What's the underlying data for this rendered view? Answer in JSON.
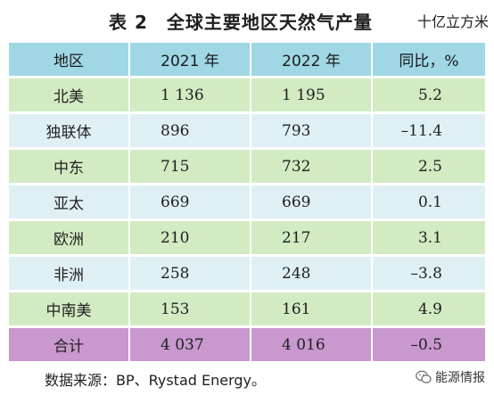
{
  "title": "表 2　全球主要地区天然气产量",
  "unit": "十亿立方米",
  "table": {
    "headers": [
      "地区",
      "2021 年",
      "2022 年",
      "同比，%"
    ],
    "rows": [
      {
        "region": "北美",
        "y2021": "1 136",
        "y2022": "1 195",
        "yoy": "5.2"
      },
      {
        "region": "独联体",
        "y2021": "896",
        "y2022": "793",
        "yoy": "–11.4"
      },
      {
        "region": "中东",
        "y2021": "715",
        "y2022": "732",
        "yoy": "2.5"
      },
      {
        "region": "亚太",
        "y2021": "669",
        "y2022": "669",
        "yoy": "0.1"
      },
      {
        "region": "欧洲",
        "y2021": "210",
        "y2022": "217",
        "yoy": "3.1"
      },
      {
        "region": "非洲",
        "y2021": "258",
        "y2022": "248",
        "yoy": "–3.8"
      },
      {
        "region": "中南美",
        "y2021": "153",
        "y2022": "161",
        "yoy": "4.9"
      }
    ],
    "total": {
      "region": "合计",
      "y2021": "4 037",
      "y2022": "4 016",
      "yoy": "–0.5"
    }
  },
  "source": "数据来源：BP、Rystad Energy。",
  "watermark": {
    "label": "能源情报",
    "icon": "wechat-icon"
  },
  "colors": {
    "header": "#9fd7e5",
    "row_green": "#d2ebc2",
    "row_blue": "#dff0f4",
    "total": "#c898cf"
  }
}
